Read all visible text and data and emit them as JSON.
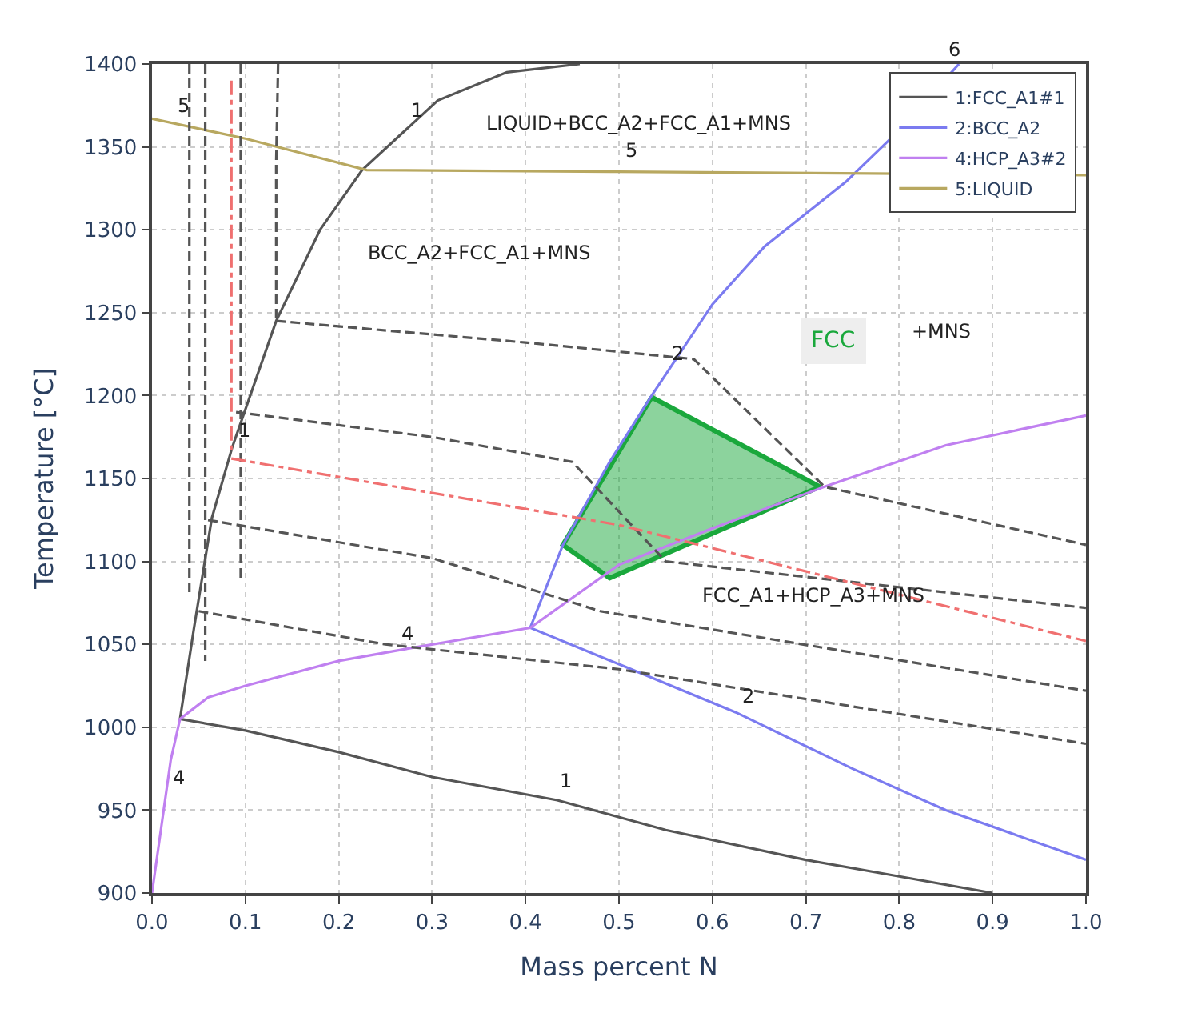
{
  "chart_data": {
    "type": "line",
    "xlabel": "Mass percent N",
    "ylabel": "Temperature [°C]",
    "xlim": [
      0,
      1
    ],
    "ylim": [
      900,
      1400
    ],
    "xticks": [
      {
        "value": 0,
        "label": "0.0"
      },
      0.1,
      0.2,
      0.3,
      0.4,
      0.5,
      0.6,
      0.7,
      0.8,
      0.9,
      {
        "value": 1,
        "label": "1.0"
      }
    ],
    "yticks": [
      900,
      950,
      1000,
      1050,
      1100,
      1150,
      1200,
      1250,
      1300,
      1350,
      1400
    ],
    "grid": true,
    "legend": "top right",
    "marker": "none",
    "series": [
      {
        "name": "1:FCC_A1#1",
        "color": "#555555",
        "line_style": "solid",
        "x": [
          0.9,
          0.8,
          0.7,
          0.55,
          0.434,
          0.3,
          0.2,
          0.1,
          0.03,
          0.045,
          0.064,
          0.086,
          0.133,
          0.18,
          0.225,
          0.306,
          0.38,
          0.458
        ],
        "values": [
          900,
          910,
          920,
          938,
          956,
          970,
          985,
          998,
          1005,
          1060,
          1126,
          1169,
          1245,
          1300,
          1336,
          1378,
          1395,
          1400
        ]
      },
      {
        "name": "2:BCC_A2",
        "color": "#7b7bf0",
        "line_style": "solid",
        "x": [
          1.0,
          0.85,
          0.75,
          0.625,
          0.5,
          0.405,
          0.44,
          0.49,
          0.535,
          0.6,
          0.656,
          0.743,
          0.8,
          0.864
        ],
        "values": [
          920,
          950,
          975,
          1009,
          1038,
          1060,
          1110,
          1160,
          1200,
          1255,
          1290,
          1329,
          1360,
          1400
        ]
      },
      {
        "name": "4:HCP_A3#2",
        "color": "#c080f0",
        "line_style": "solid",
        "x": [
          0.0,
          0.01,
          0.02,
          0.03,
          0.06,
          0.1,
          0.2,
          0.27,
          0.405,
          0.5,
          0.6,
          0.72,
          0.85,
          1.0
        ],
        "values": [
          900,
          940,
          980,
          1005,
          1018,
          1025,
          1040,
          1047,
          1060,
          1098,
          1120,
          1145,
          1170,
          1188
        ]
      },
      {
        "name": "5:LIQUID",
        "color": "#b8a860",
        "line_style": "solid",
        "x": [
          0.0,
          0.1,
          0.23,
          0.5,
          1.0
        ],
        "values": [
          1367,
          1355,
          1336,
          1335,
          1333
        ]
      },
      {
        "type": "area",
        "color": "#1aa83c",
        "x": [
          0.535,
          0.715,
          0.49,
          0.44,
          0.535
        ],
        "values": [
          1199,
          1145,
          1090,
          1110,
          1199
        ]
      },
      {
        "color": "#555555",
        "line_style": "dashed",
        "x": [
          0.04,
          0.04
        ],
        "values": [
          1400,
          1080
        ]
      },
      {
        "color": "#555555",
        "line_style": "dashed",
        "x": [
          0.057,
          0.057
        ],
        "values": [
          1400,
          1040
        ]
      },
      {
        "color": "#555555",
        "line_style": "dashed",
        "x": [
          0.095,
          0.095
        ],
        "values": [
          1400,
          1090
        ]
      },
      {
        "color": "#555555",
        "line_style": "dashed",
        "x": [
          0.135,
          0.133,
          0.133
        ],
        "values": [
          1400,
          1340,
          1245
        ]
      },
      {
        "color": "#f07070",
        "line_style": "dashdot",
        "x": [
          0.085,
          0.085
        ],
        "values": [
          1390,
          1165
        ]
      },
      {
        "color": "#555555",
        "line_style": "dashed",
        "x": [
          0.133,
          0.4,
          0.58,
          0.72,
          1.0
        ],
        "values": [
          1245,
          1232,
          1222,
          1145,
          1110
        ]
      },
      {
        "color": "#555555",
        "line_style": "dashed",
        "x": [
          0.09,
          0.3,
          0.45,
          0.55,
          1.0
        ],
        "values": [
          1190,
          1175,
          1160,
          1100,
          1072
        ]
      },
      {
        "color": "#f07070",
        "line_style": "dashdot",
        "x": [
          0.085,
          0.5,
          1.0
        ],
        "values": [
          1162,
          1122,
          1052
        ]
      },
      {
        "color": "#555555",
        "line_style": "dashed",
        "x": [
          0.06,
          0.3,
          0.48,
          1.0
        ],
        "values": [
          1125,
          1102,
          1070,
          1022
        ]
      },
      {
        "color": "#555555",
        "line_style": "dashed",
        "x": [
          0.05,
          0.25,
          0.5,
          1.0
        ],
        "values": [
          1070,
          1050,
          1035,
          990
        ]
      }
    ],
    "annotations": [
      "LIQUID+BCC_A2+FCC_A1+MNS",
      "BCC_A2+FCC_A1+MNS",
      "FCC",
      "+MNS",
      "FCC_A1+HCP_A3+MNS",
      "6",
      {
        "text": "1",
        "x": 0.27,
        "y": 1362
      },
      {
        "text": "1",
        "x": 0.086,
        "y": 1169
      },
      {
        "text": "1",
        "x": 0.43,
        "y": 958
      },
      {
        "text": "2",
        "x": 0.55,
        "y": 1216
      },
      {
        "text": "2",
        "x": 0.625,
        "y": 1009
      },
      {
        "text": "4",
        "x": 0.26,
        "y": 1047
      },
      {
        "text": "4",
        "x": 0.015,
        "y": 960
      },
      {
        "text": "5",
        "x": 0.02,
        "y": 1365
      },
      {
        "text": "5",
        "x": 0.5,
        "y": 1338
      }
    ]
  }
}
